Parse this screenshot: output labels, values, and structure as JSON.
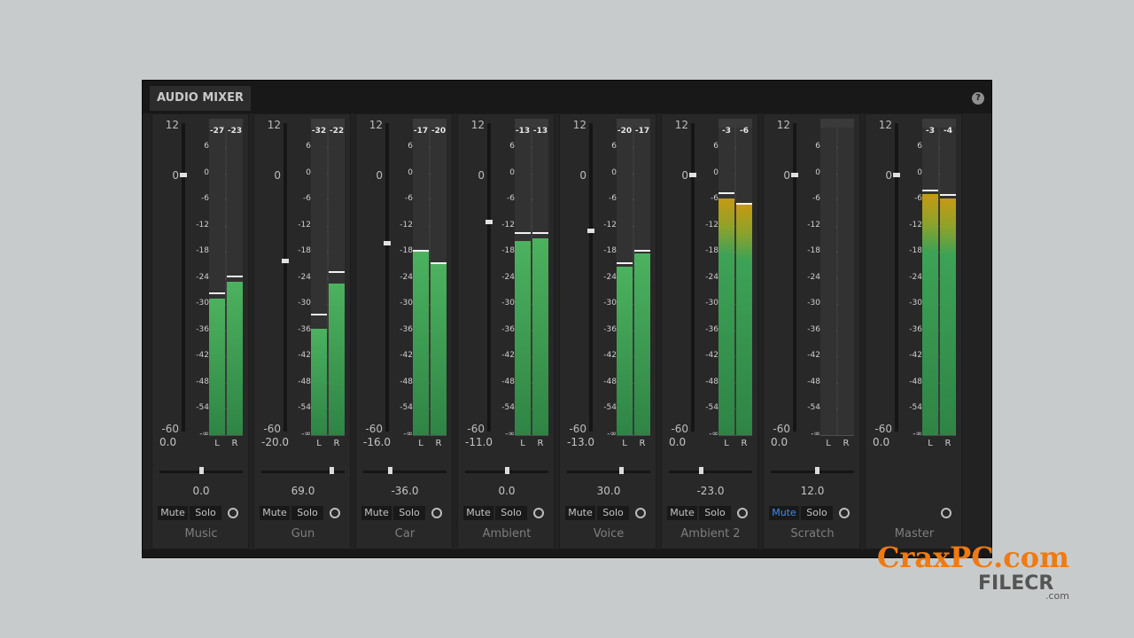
{
  "window": {
    "tab_label": "AUDIO MIXER",
    "help_icon": "?"
  },
  "volume_scale": [
    "12",
    "0",
    "-60"
  ],
  "meter_ticks": [
    "6",
    "0",
    "-6",
    "-12",
    "-18",
    "-24",
    "-30",
    "-36",
    "-42",
    "-48",
    "-54",
    "-∞"
  ],
  "meter_range_db": [
    -60,
    12
  ],
  "channels": [
    {
      "name": "Music",
      "volume": "0.0",
      "volume_db": 0,
      "pan": "0.0",
      "pan_value": 0,
      "peak_L": "-27",
      "peak_R": "-23",
      "level_L": -28,
      "level_R": -24,
      "peak_db_L": -27,
      "peak_db_R": -23,
      "mute": "Mute",
      "solo": "Solo",
      "muted": false,
      "L": "L",
      "R": "R"
    },
    {
      "name": "Gun",
      "volume": "-20.0",
      "volume_db": -20,
      "pan": "69.0",
      "pan_value": 69,
      "peak_L": "-32",
      "peak_R": "-22",
      "level_L": -35,
      "level_R": -24.5,
      "peak_db_L": -32,
      "peak_db_R": -22,
      "mute": "Mute",
      "solo": "Solo",
      "muted": false,
      "L": "L",
      "R": "R"
    },
    {
      "name": "Car",
      "volume": "-16.0",
      "volume_db": -16,
      "pan": "-36.0",
      "pan_value": -36,
      "peak_L": "-17",
      "peak_R": "-20",
      "level_L": -17,
      "level_R": -20,
      "peak_db_L": -17,
      "peak_db_R": -20,
      "mute": "Mute",
      "solo": "Solo",
      "muted": false,
      "L": "L",
      "R": "R"
    },
    {
      "name": "Ambient",
      "volume": "-11.0",
      "volume_db": -11,
      "pan": "0.0",
      "pan_value": 0,
      "peak_L": "-13",
      "peak_R": "-13",
      "level_L": -14.5,
      "level_R": -14,
      "peak_db_L": -13,
      "peak_db_R": -13,
      "mute": "Mute",
      "solo": "Solo",
      "muted": false,
      "L": "L",
      "R": "R"
    },
    {
      "name": "Voice",
      "volume": "-13.0",
      "volume_db": -13,
      "pan": "30.0",
      "pan_value": 30,
      "peak_L": "-20",
      "peak_R": "-17",
      "level_L": -20.5,
      "level_R": -17.5,
      "peak_db_L": -20,
      "peak_db_R": -17,
      "mute": "Mute",
      "solo": "Solo",
      "muted": false,
      "L": "L",
      "R": "R"
    },
    {
      "name": "Ambient 2",
      "volume": "0.0",
      "volume_db": 0,
      "pan": "-23.0",
      "pan_value": -23,
      "peak_L": "-3",
      "peak_R": "-6",
      "level_L": -4.5,
      "level_R": -6,
      "peak_db_L": -3.5,
      "peak_db_R": -6,
      "mute": "Mute",
      "solo": "Solo",
      "muted": false,
      "L": "L",
      "R": "R"
    },
    {
      "name": "Scratch",
      "volume": "0.0",
      "volume_db": 0,
      "pan": "12.0",
      "pan_value": 12,
      "peak_L": "",
      "peak_R": "",
      "level_L": null,
      "level_R": null,
      "peak_db_L": null,
      "peak_db_R": null,
      "mute": "Mute",
      "solo": "Solo",
      "muted": true,
      "L": "L",
      "R": "R"
    },
    {
      "name": "Master",
      "volume": "0.0",
      "volume_db": 0,
      "pan": "",
      "pan_value": null,
      "peak_L": "-3",
      "peak_R": "-4",
      "level_L": -3.5,
      "level_R": -4.5,
      "peak_db_L": -3,
      "peak_db_R": -4,
      "mute": "",
      "solo": "",
      "muted": false,
      "L": "L",
      "R": "R",
      "is_master": true
    }
  ],
  "colors": {
    "meter_green": "#2f8445",
    "meter_hot": "#c69a12",
    "mute_active": "#3c8cf5"
  },
  "watermark": {
    "line1": "CraxPC.com",
    "line2": "FILECR",
    "line3": ".com"
  }
}
